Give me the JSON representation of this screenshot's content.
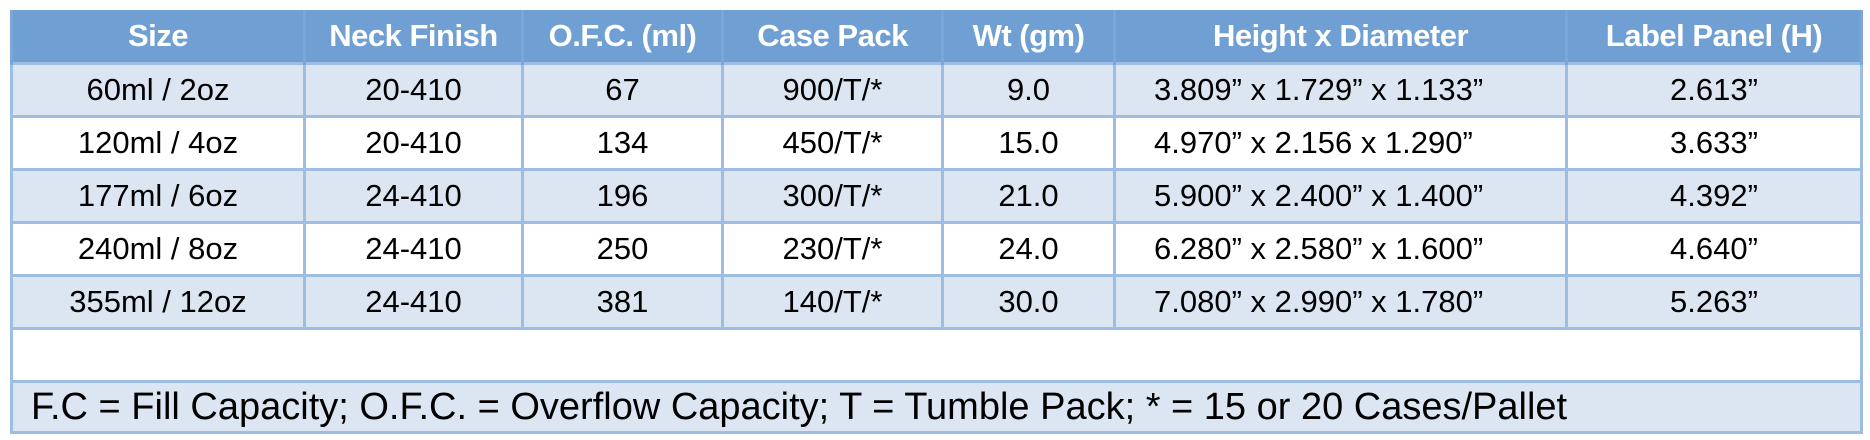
{
  "headers": [
    "Size",
    "Neck Finish",
    "O.F.C. (ml)",
    "Case Pack",
    "Wt (gm)",
    "Height x Diameter",
    "Label Panel (H)"
  ],
  "rows": [
    [
      "60ml / 2oz",
      "20-410",
      "67",
      "900/T/*",
      "9.0",
      "3.809” x 1.729” x 1.133”",
      "2.613”"
    ],
    [
      "120ml / 4oz",
      "20-410",
      "134",
      "450/T/*",
      "15.0",
      "4.970” x 2.156 x 1.290”",
      "3.633”"
    ],
    [
      "177ml / 6oz",
      "24-410",
      "196",
      "300/T/*",
      "21.0",
      "5.900” x 2.400” x 1.400”",
      "4.392”"
    ],
    [
      "240ml / 8oz",
      "24-410",
      "250",
      "230/T/*",
      "24.0",
      "6.280” x 2.580” x 1.600”",
      "4.640”"
    ],
    [
      "355ml / 12oz",
      "24-410",
      "381",
      "140/T/*",
      "30.0",
      "7.080” x 2.990” x 1.780”",
      "5.263”"
    ]
  ],
  "footnote": "F.C = Fill Capacity; O.F.C. = Overflow Capacity; T = Tumble Pack; * = 15 or 20 Cases/Pallet",
  "colors": {
    "header_bg": "#6f9fd3",
    "header_text": "#ffffff",
    "row_alt_bg": "#dce6f2",
    "grid": "#9dbde3"
  }
}
